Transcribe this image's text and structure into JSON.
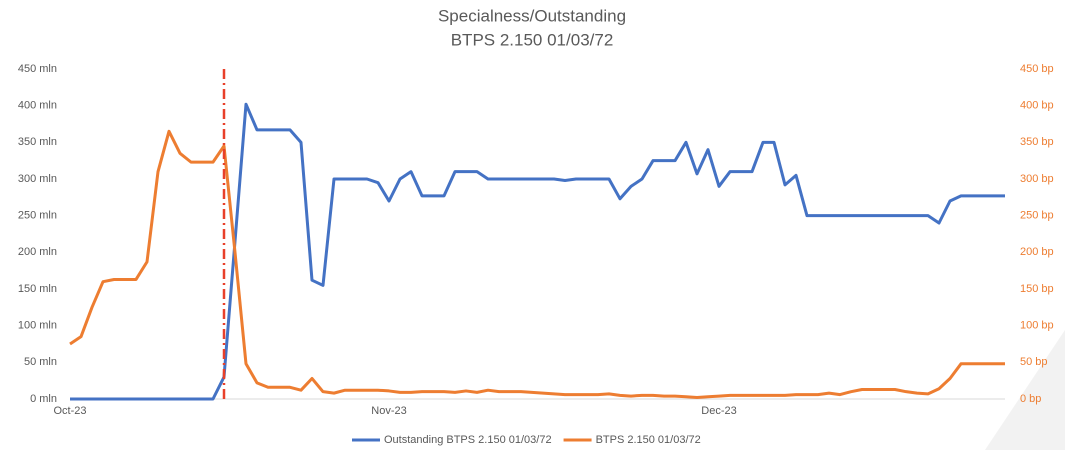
{
  "chart_data": {
    "type": "line",
    "title": "Specialness/Outstanding",
    "subtitle": "BTPS 2.150 01/03/72",
    "categories": [
      "Oct-23",
      null,
      null,
      null,
      null,
      null,
      null,
      null,
      null,
      null,
      null,
      null,
      null,
      null,
      null,
      null,
      null,
      null,
      null,
      null,
      null,
      null,
      null,
      null,
      null,
      null,
      null,
      null,
      null,
      "Nov-23",
      null,
      null,
      null,
      null,
      null,
      null,
      null,
      null,
      null,
      null,
      null,
      null,
      null,
      null,
      null,
      null,
      null,
      null,
      null,
      null,
      null,
      null,
      null,
      null,
      null,
      null,
      null,
      null,
      null,
      "Dec-23",
      null,
      null,
      null,
      null,
      null,
      null,
      null,
      null,
      null,
      null,
      null,
      null,
      null,
      null,
      null,
      null,
      null,
      null,
      null,
      null,
      null,
      null,
      null,
      null,
      null,
      null
    ],
    "series": [
      {
        "name": "Outstanding BTPS 2.150 01/03/72",
        "color": "#4472c4",
        "axis": "y",
        "values": [
          0,
          0,
          0,
          0,
          0,
          0,
          0,
          0,
          0,
          0,
          0,
          0,
          0,
          0,
          30,
          215,
          402,
          367,
          367,
          367,
          367,
          350,
          162,
          155,
          300,
          300,
          300,
          300,
          295,
          270,
          300,
          310,
          277,
          277,
          277,
          310,
          310,
          310,
          300,
          300,
          300,
          300,
          300,
          300,
          300,
          298,
          300,
          300,
          300,
          300,
          273,
          290,
          300,
          325,
          325,
          325,
          350,
          307,
          340,
          290,
          310,
          310,
          310,
          350,
          350,
          292,
          305,
          250,
          250,
          250,
          250,
          250,
          250,
          250,
          250,
          250,
          250,
          250,
          250,
          240,
          270,
          277,
          277,
          277,
          277,
          277
        ]
      },
      {
        "name": "BTPS 2.150 01/03/72",
        "color": "#ed7d31",
        "axis": "y2",
        "values": [
          75,
          85,
          125,
          160,
          163,
          163,
          163,
          187,
          310,
          365,
          335,
          323,
          323,
          323,
          345,
          200,
          48,
          22,
          16,
          16,
          16,
          12,
          28,
          10,
          8,
          12,
          12,
          12,
          12,
          11,
          9,
          9,
          10,
          10,
          10,
          9,
          11,
          9,
          12,
          10,
          10,
          10,
          9,
          8,
          7,
          6,
          6,
          6,
          6,
          7,
          5,
          4,
          5,
          5,
          4,
          4,
          3,
          2,
          3,
          4,
          5,
          5,
          5,
          5,
          5,
          5,
          6,
          6,
          6,
          8,
          6,
          10,
          13,
          13,
          13,
          13,
          10,
          8,
          7,
          14,
          28,
          48,
          48,
          48,
          48,
          48
        ]
      }
    ],
    "ylim": [
      0,
      450
    ],
    "yticks": [
      {
        "value": 0,
        "label": "0 mln"
      },
      {
        "value": 50,
        "label": "50 mln"
      },
      {
        "value": 100,
        "label": "100 mln"
      },
      {
        "value": 150,
        "label": "150 mln"
      },
      {
        "value": 200,
        "label": "200 mln"
      },
      {
        "value": 250,
        "label": "250 mln"
      },
      {
        "value": 300,
        "label": "300 mln"
      },
      {
        "value": 350,
        "label": "350 mln"
      },
      {
        "value": 400,
        "label": "400 mln"
      },
      {
        "value": 450,
        "label": "450 mln"
      }
    ],
    "y2lim": [
      0,
      450
    ],
    "y2ticks": [
      {
        "value": 0,
        "label": "0 bp"
      },
      {
        "value": 50,
        "label": "50 bp"
      },
      {
        "value": 100,
        "label": "100 bp"
      },
      {
        "value": 150,
        "label": "150 bp"
      },
      {
        "value": 200,
        "label": "200 bp"
      },
      {
        "value": 250,
        "label": "250 bp"
      },
      {
        "value": 300,
        "label": "300 bp"
      },
      {
        "value": 350,
        "label": "350 bp"
      },
      {
        "value": 400,
        "label": "400 bp"
      },
      {
        "value": 450,
        "label": "450 bp"
      }
    ],
    "vline": {
      "category_index": 14,
      "color": "#e8402a"
    },
    "legend": "bottom"
  }
}
